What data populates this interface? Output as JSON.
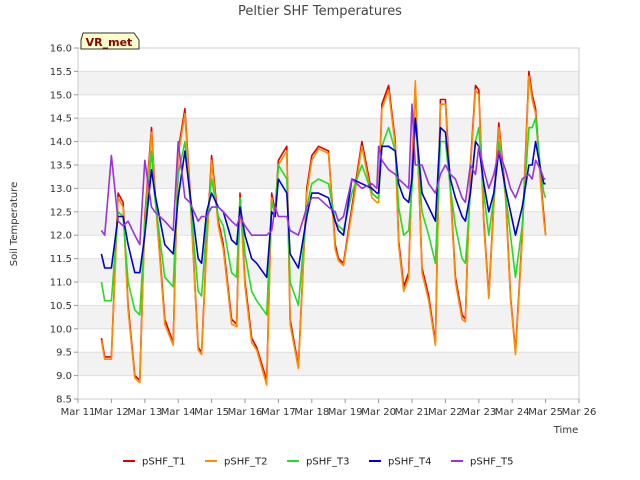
{
  "chart_data": {
    "type": "line",
    "title": "Peltier SHF Temperatures",
    "xlabel": "Time",
    "ylabel": "Soil Temperature",
    "badge": "VR_met",
    "xlim": [
      11,
      26
    ],
    "ylim": [
      8.5,
      16.0
    ],
    "x_ticks": [
      11,
      12,
      13,
      14,
      15,
      16,
      17,
      18,
      19,
      20,
      21,
      22,
      23,
      24,
      25,
      26
    ],
    "x_tick_labels": [
      "Mar 11",
      "Mar 12",
      "Mar 13",
      "Mar 14",
      "Mar 15",
      "Mar 16",
      "Mar 17",
      "Mar 18",
      "Mar 19",
      "Mar 20",
      "Mar 21",
      "Mar 22",
      "Mar 23",
      "Mar 24",
      "Mar 25",
      "Mar 26"
    ],
    "y_ticks": [
      8.5,
      9.0,
      9.5,
      10.0,
      10.5,
      11.0,
      11.5,
      12.0,
      12.5,
      13.0,
      13.5,
      14.0,
      14.5,
      15.0,
      15.5,
      16.0
    ],
    "y_tick_labels": [
      "8.5",
      "9.0",
      "9.5",
      "10.0",
      "10.5",
      "11.0",
      "11.5",
      "12.0",
      "12.5",
      "13.0",
      "13.5",
      "14.0",
      "14.5",
      "15.0",
      "15.5",
      "16.0"
    ],
    "grid": "horizontal bands",
    "legend_position": "bottom",
    "x_note": "x values are fractional days of March",
    "series": [
      {
        "name": "pSHF_T1",
        "color": "#dd0000",
        "x": [
          11.7,
          11.8,
          12.0,
          12.2,
          12.35,
          12.5,
          12.7,
          12.85,
          13.0,
          13.2,
          13.3,
          13.6,
          13.85,
          14.0,
          14.2,
          14.35,
          14.6,
          14.7,
          14.85,
          15.0,
          15.2,
          15.35,
          15.6,
          15.75,
          15.85,
          16.0,
          16.2,
          16.35,
          16.65,
          16.8,
          16.9,
          17.0,
          17.25,
          17.35,
          17.6,
          17.85,
          18.0,
          18.2,
          18.5,
          18.7,
          18.8,
          18.95,
          19.2,
          19.5,
          19.8,
          19.95,
          20.0,
          20.1,
          20.3,
          20.5,
          20.6,
          20.75,
          20.9,
          21.0,
          21.1,
          21.3,
          21.5,
          21.7,
          21.85,
          22.0,
          22.15,
          22.3,
          22.5,
          22.6,
          22.75,
          22.9,
          23.0,
          23.15,
          23.3,
          23.45,
          23.6,
          23.8,
          23.95,
          24.1,
          24.3,
          24.5,
          24.6,
          24.7,
          24.85,
          24.95,
          25.0
        ],
        "y": [
          9.8,
          9.4,
          9.4,
          12.9,
          12.7,
          10.5,
          9.0,
          8.9,
          12.4,
          14.3,
          13.0,
          10.2,
          9.7,
          13.8,
          14.7,
          13.0,
          9.6,
          9.5,
          11.8,
          13.7,
          12.3,
          11.8,
          10.2,
          10.1,
          12.9,
          11.0,
          9.8,
          9.6,
          8.9,
          12.9,
          12.5,
          13.6,
          13.9,
          10.2,
          9.2,
          13.0,
          13.7,
          13.9,
          13.8,
          11.8,
          11.5,
          11.4,
          12.6,
          14.0,
          12.9,
          12.8,
          12.8,
          14.8,
          15.2,
          14.0,
          11.9,
          10.9,
          11.2,
          13.5,
          15.2,
          11.3,
          10.7,
          9.7,
          14.9,
          14.9,
          13.0,
          11.1,
          10.3,
          10.2,
          13.5,
          15.2,
          15.1,
          12.3,
          10.7,
          12.7,
          14.4,
          12.9,
          10.7,
          9.5,
          12.0,
          15.5,
          15.0,
          14.7,
          13.2,
          12.4,
          12.0
        ]
      },
      {
        "name": "pSHF_T2",
        "color": "#ff8c00",
        "x": [
          11.7,
          11.8,
          12.0,
          12.2,
          12.35,
          12.5,
          12.7,
          12.85,
          13.0,
          13.2,
          13.3,
          13.6,
          13.85,
          14.0,
          14.2,
          14.35,
          14.6,
          14.7,
          14.85,
          15.0,
          15.2,
          15.35,
          15.6,
          15.75,
          15.85,
          16.0,
          16.2,
          16.35,
          16.65,
          16.8,
          16.9,
          17.0,
          17.25,
          17.35,
          17.6,
          17.85,
          18.0,
          18.2,
          18.5,
          18.7,
          18.8,
          18.95,
          19.2,
          19.5,
          19.8,
          19.95,
          20.0,
          20.1,
          20.3,
          20.5,
          20.6,
          20.75,
          20.9,
          21.0,
          21.1,
          21.3,
          21.5,
          21.7,
          21.85,
          22.0,
          22.15,
          22.3,
          22.5,
          22.6,
          22.75,
          22.9,
          23.0,
          23.15,
          23.3,
          23.45,
          23.6,
          23.8,
          23.95,
          24.1,
          24.3,
          24.5,
          24.6,
          24.7,
          24.85,
          24.95,
          25.0
        ],
        "y": [
          9.75,
          9.35,
          9.35,
          12.8,
          12.6,
          10.4,
          8.95,
          8.85,
          12.3,
          14.2,
          12.9,
          10.1,
          9.65,
          13.7,
          14.6,
          12.9,
          9.55,
          9.45,
          11.7,
          13.6,
          12.2,
          11.7,
          10.1,
          10.05,
          12.8,
          10.9,
          9.7,
          9.55,
          8.8,
          12.8,
          12.4,
          13.5,
          13.8,
          10.1,
          9.15,
          12.9,
          13.6,
          13.85,
          13.75,
          11.7,
          11.45,
          11.35,
          12.5,
          13.9,
          12.8,
          12.7,
          12.7,
          14.7,
          15.1,
          13.9,
          11.8,
          10.8,
          11.1,
          13.4,
          15.3,
          11.2,
          10.6,
          9.65,
          14.8,
          14.8,
          12.9,
          11.0,
          10.2,
          10.15,
          13.4,
          15.1,
          15.0,
          12.2,
          10.65,
          12.6,
          14.3,
          12.8,
          10.65,
          9.45,
          11.9,
          15.4,
          14.9,
          14.6,
          13.1,
          12.3,
          12.0
        ]
      },
      {
        "name": "pSHF_T3",
        "color": "#22dd22",
        "x": [
          11.7,
          11.8,
          12.0,
          12.2,
          12.35,
          12.5,
          12.7,
          12.85,
          13.0,
          13.2,
          13.3,
          13.6,
          13.85,
          14.0,
          14.2,
          14.35,
          14.6,
          14.7,
          14.85,
          15.0,
          15.2,
          15.35,
          15.6,
          15.75,
          15.85,
          16.0,
          16.2,
          16.35,
          16.65,
          16.8,
          16.9,
          17.0,
          17.25,
          17.35,
          17.6,
          17.85,
          18.0,
          18.2,
          18.5,
          18.7,
          18.8,
          18.95,
          19.2,
          19.5,
          19.8,
          19.95,
          20.0,
          20.1,
          20.3,
          20.5,
          20.6,
          20.75,
          20.9,
          21.0,
          21.1,
          21.3,
          21.5,
          21.7,
          21.85,
          22.0,
          22.15,
          22.3,
          22.5,
          22.6,
          22.75,
          22.9,
          23.0,
          23.15,
          23.3,
          23.45,
          23.6,
          23.8,
          23.95,
          24.1,
          24.3,
          24.5,
          24.6,
          24.7,
          24.85,
          24.95,
          25.0
        ],
        "y": [
          11.0,
          10.6,
          10.6,
          12.5,
          12.4,
          11.0,
          10.4,
          10.3,
          12.2,
          13.8,
          12.8,
          11.1,
          10.9,
          13.3,
          14.0,
          12.8,
          10.8,
          10.7,
          12.2,
          13.2,
          12.4,
          12.2,
          11.2,
          11.1,
          12.8,
          11.6,
          10.8,
          10.6,
          10.3,
          12.7,
          12.5,
          13.5,
          13.2,
          11.0,
          10.5,
          12.6,
          13.1,
          13.2,
          13.1,
          12.3,
          12.2,
          12.1,
          12.9,
          13.5,
          12.9,
          12.8,
          12.8,
          13.9,
          14.3,
          13.8,
          12.6,
          12.0,
          12.1,
          13.0,
          14.5,
          12.5,
          12.0,
          11.4,
          14.0,
          14.0,
          13.0,
          12.2,
          11.5,
          11.4,
          12.9,
          14.0,
          14.3,
          12.9,
          12.0,
          12.8,
          14.0,
          12.9,
          12.0,
          11.1,
          12.2,
          14.3,
          14.3,
          14.5,
          13.4,
          12.9,
          12.8
        ]
      },
      {
        "name": "pSHF_T4",
        "color": "#0000cc",
        "x": [
          11.7,
          11.8,
          12.0,
          12.2,
          12.35,
          12.5,
          12.7,
          12.85,
          13.0,
          13.2,
          13.3,
          13.6,
          13.85,
          14.0,
          14.2,
          14.35,
          14.6,
          14.7,
          14.85,
          15.0,
          15.2,
          15.35,
          15.6,
          15.75,
          15.85,
          16.0,
          16.2,
          16.35,
          16.65,
          16.8,
          16.9,
          17.0,
          17.25,
          17.35,
          17.6,
          17.85,
          18.0,
          18.2,
          18.5,
          18.7,
          18.8,
          18.95,
          19.2,
          19.5,
          19.8,
          19.95,
          20.0,
          20.1,
          20.3,
          20.5,
          20.6,
          20.75,
          20.9,
          21.0,
          21.1,
          21.3,
          21.5,
          21.7,
          21.85,
          22.0,
          22.15,
          22.3,
          22.5,
          22.6,
          22.75,
          22.9,
          23.0,
          23.15,
          23.3,
          23.45,
          23.6,
          23.8,
          23.95,
          24.1,
          24.3,
          24.5,
          24.6,
          24.7,
          24.85,
          24.95,
          25.0
        ],
        "y": [
          11.6,
          11.3,
          11.3,
          12.4,
          12.4,
          11.8,
          11.2,
          11.2,
          12.0,
          13.4,
          12.9,
          11.8,
          11.6,
          12.8,
          13.8,
          12.9,
          11.5,
          11.4,
          12.5,
          12.9,
          12.6,
          12.5,
          11.9,
          11.8,
          12.6,
          12.0,
          11.5,
          11.4,
          11.1,
          12.5,
          12.4,
          13.2,
          12.9,
          11.6,
          11.3,
          12.4,
          12.9,
          12.9,
          12.8,
          12.3,
          12.1,
          12.0,
          13.2,
          13.1,
          13.0,
          12.9,
          12.9,
          13.9,
          13.9,
          13.8,
          13.1,
          12.8,
          12.7,
          13.2,
          14.5,
          12.9,
          12.6,
          12.3,
          14.3,
          14.2,
          13.2,
          12.8,
          12.4,
          12.3,
          12.9,
          14.0,
          13.9,
          13.1,
          12.5,
          12.9,
          13.8,
          13.0,
          12.5,
          12.0,
          12.6,
          13.5,
          13.5,
          14.0,
          13.4,
          13.1,
          13.1
        ]
      },
      {
        "name": "pSHF_T5",
        "color": "#9933dd",
        "x": [
          11.7,
          11.8,
          12.0,
          12.2,
          12.35,
          12.5,
          12.7,
          12.85,
          13.0,
          13.2,
          13.3,
          13.6,
          13.85,
          14.0,
          14.2,
          14.35,
          14.6,
          14.7,
          14.85,
          15.0,
          15.2,
          15.35,
          15.6,
          15.75,
          15.85,
          16.0,
          16.2,
          16.35,
          16.65,
          16.8,
          16.9,
          17.0,
          17.25,
          17.35,
          17.6,
          17.85,
          18.0,
          18.2,
          18.5,
          18.7,
          18.8,
          18.95,
          19.2,
          19.5,
          19.8,
          19.95,
          20.0,
          20.1,
          20.3,
          20.5,
          20.6,
          20.75,
          20.9,
          21.0,
          21.1,
          21.3,
          21.5,
          21.7,
          21.85,
          22.0,
          22.15,
          22.3,
          22.5,
          22.6,
          22.75,
          22.9,
          23.0,
          23.15,
          23.3,
          23.45,
          23.6,
          23.8,
          23.95,
          24.1,
          24.3,
          24.5,
          24.6,
          24.7,
          24.85,
          24.95,
          25.0
        ],
        "y": [
          12.1,
          12.0,
          13.7,
          12.3,
          12.2,
          12.3,
          12.0,
          11.8,
          13.6,
          12.6,
          12.5,
          12.3,
          12.1,
          14.0,
          12.8,
          12.7,
          12.3,
          12.4,
          12.4,
          12.6,
          12.6,
          12.5,
          12.3,
          12.2,
          12.4,
          12.2,
          12.0,
          12.0,
          12.0,
          12.1,
          12.6,
          12.4,
          12.4,
          12.1,
          12.0,
          12.6,
          12.8,
          12.8,
          12.6,
          12.5,
          12.3,
          12.4,
          13.2,
          13.0,
          13.1,
          13.0,
          13.9,
          13.6,
          13.4,
          13.3,
          13.2,
          13.1,
          13.0,
          14.8,
          13.5,
          13.5,
          13.1,
          12.9,
          13.3,
          13.5,
          13.3,
          13.2,
          12.8,
          12.7,
          13.5,
          13.3,
          13.9,
          13.4,
          13.0,
          13.3,
          13.8,
          13.4,
          13.0,
          12.8,
          13.2,
          13.3,
          13.2,
          13.6,
          13.4,
          13.2,
          13.2
        ]
      }
    ]
  }
}
